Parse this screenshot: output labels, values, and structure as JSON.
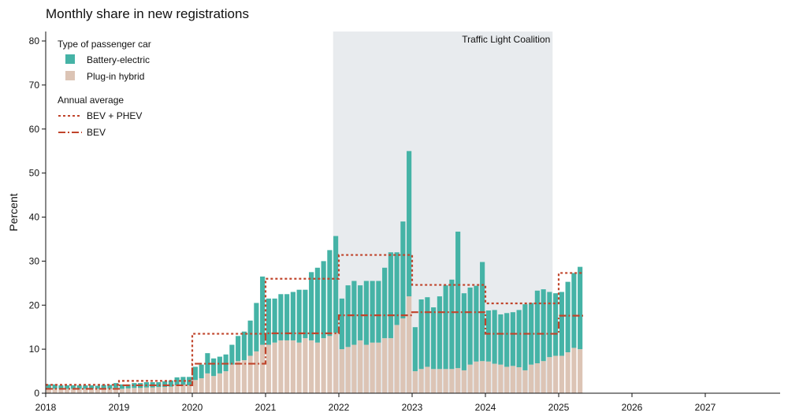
{
  "chart_data": {
    "type": "bar",
    "title": "Monthly share in new registrations",
    "ylabel": "Percent",
    "xlabel": "",
    "ylim": [
      0,
      82
    ],
    "yticks": [
      0,
      10,
      20,
      30,
      40,
      50,
      60,
      70,
      80
    ],
    "xlim": [
      "2018-01",
      "2027-12"
    ],
    "xticks": [
      "2018",
      "2019",
      "2020",
      "2021",
      "2022",
      "2023",
      "2024",
      "2025",
      "2026",
      "2027"
    ],
    "stacked": true,
    "months": [
      "2018-01",
      "2018-02",
      "2018-03",
      "2018-04",
      "2018-05",
      "2018-06",
      "2018-07",
      "2018-08",
      "2018-09",
      "2018-10",
      "2018-11",
      "2018-12",
      "2019-01",
      "2019-02",
      "2019-03",
      "2019-04",
      "2019-05",
      "2019-06",
      "2019-07",
      "2019-08",
      "2019-09",
      "2019-10",
      "2019-11",
      "2019-12",
      "2020-01",
      "2020-02",
      "2020-03",
      "2020-04",
      "2020-05",
      "2020-06",
      "2020-07",
      "2020-08",
      "2020-09",
      "2020-10",
      "2020-11",
      "2020-12",
      "2021-01",
      "2021-02",
      "2021-03",
      "2021-04",
      "2021-05",
      "2021-06",
      "2021-07",
      "2021-08",
      "2021-09",
      "2021-10",
      "2021-11",
      "2021-12",
      "2022-01",
      "2022-02",
      "2022-03",
      "2022-04",
      "2022-05",
      "2022-06",
      "2022-07",
      "2022-08",
      "2022-09",
      "2022-10",
      "2022-11",
      "2022-12",
      "2023-01",
      "2023-02",
      "2023-03",
      "2023-04",
      "2023-05",
      "2023-06",
      "2023-07",
      "2023-08",
      "2023-09",
      "2023-10",
      "2023-11",
      "2023-12",
      "2024-01",
      "2024-02",
      "2024-03",
      "2024-04",
      "2024-05",
      "2024-06",
      "2024-07",
      "2024-08",
      "2024-09",
      "2024-10",
      "2024-11",
      "2024-12",
      "2025-01",
      "2025-02",
      "2025-03",
      "2025-04"
    ],
    "series": [
      {
        "name": "Plug-in hybrid",
        "color": "#dcc4b5",
        "values": [
          1.0,
          1.0,
          1.0,
          1.0,
          1.0,
          1.0,
          1.0,
          1.0,
          1.0,
          1.1,
          1.0,
          1.2,
          1.0,
          1.1,
          1.2,
          1.2,
          1.3,
          1.3,
          1.4,
          1.4,
          1.5,
          1.8,
          1.9,
          1.8,
          3.0,
          3.4,
          4.5,
          3.9,
          4.5,
          5.0,
          6.5,
          7.3,
          7.5,
          8.5,
          9.5,
          11.0,
          11.0,
          11.5,
          12.0,
          12.0,
          12.0,
          11.5,
          12.5,
          12.0,
          11.5,
          12.5,
          13.0,
          13.7,
          10.0,
          10.5,
          11.0,
          12.0,
          11.0,
          11.5,
          11.5,
          12.5,
          12.5,
          15.5,
          17.0,
          22.0,
          5.0,
          5.5,
          6.0,
          5.5,
          5.5,
          5.5,
          5.5,
          5.7,
          5.2,
          6.5,
          7.2,
          7.3,
          7.2,
          6.7,
          6.5,
          6.0,
          6.2,
          5.9,
          5.2,
          6.5,
          6.8,
          7.3,
          8.2,
          8.5,
          8.5,
          9.3,
          10.3,
          10.0
        ]
      },
      {
        "name": "Battery-electric",
        "color": "#45b3a6",
        "values": [
          1.0,
          1.0,
          0.8,
          0.8,
          0.8,
          0.8,
          0.8,
          0.8,
          0.7,
          0.8,
          0.9,
          1.1,
          1.0,
          0.9,
          1.1,
          1.1,
          1.2,
          1.2,
          1.1,
          1.3,
          1.4,
          1.8,
          1.8,
          1.9,
          3.0,
          3.1,
          4.6,
          4.0,
          3.8,
          3.8,
          4.5,
          5.7,
          6.5,
          8.0,
          11.0,
          15.5,
          10.5,
          10.0,
          10.5,
          10.5,
          11.0,
          12.0,
          11.0,
          15.5,
          17.0,
          17.5,
          19.5,
          22.0,
          11.5,
          14.0,
          14.5,
          12.5,
          14.5,
          14.0,
          14.0,
          16.0,
          19.5,
          16.5,
          22.0,
          33.0,
          10.0,
          15.8,
          15.8,
          14.0,
          16.5,
          19.0,
          20.3,
          31.0,
          17.5,
          17.5,
          17.2,
          22.5,
          11.6,
          12.2,
          11.4,
          12.2,
          12.2,
          13.0,
          15.0,
          14.0,
          16.5,
          16.3,
          14.8,
          14.2,
          14.5,
          16.0,
          17.0,
          18.7
        ]
      },
      {
        "name": "BEV + PHEV",
        "kind": "annual-average",
        "style": "dotted",
        "color": "#c0442b",
        "years": [
          "2018",
          "2019",
          "2020",
          "2021",
          "2022",
          "2023",
          "2024",
          "2025"
        ],
        "values": [
          1.9,
          2.8,
          13.5,
          26.0,
          31.4,
          24.6,
          20.4,
          27.3
        ]
      },
      {
        "name": "BEV",
        "kind": "annual-average",
        "style": "dash-dot",
        "color": "#c0442b",
        "years": [
          "2018",
          "2019",
          "2020",
          "2021",
          "2022",
          "2023",
          "2024",
          "2025"
        ],
        "values": [
          1.0,
          1.8,
          6.7,
          13.6,
          17.7,
          18.4,
          13.5,
          17.6
        ]
      }
    ],
    "annotations": [
      {
        "text": "Traffic Light Coalition",
        "span": [
          "2021-12",
          "2024-12"
        ],
        "color": "#e8ebee"
      }
    ],
    "legend": {
      "placement": "top-left",
      "type_title": "Type of passenger car",
      "avg_title": "Annual average"
    },
    "grid": false
  }
}
